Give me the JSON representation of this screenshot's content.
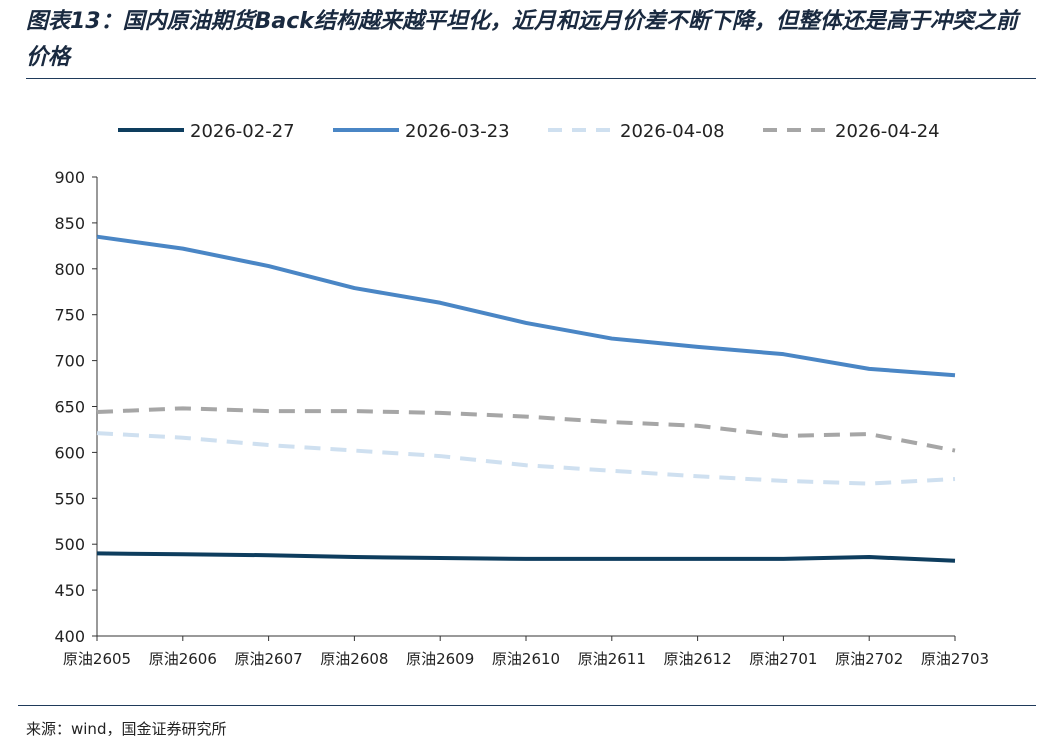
{
  "title": "图表13：国内原油期货Back结构越来越平坦化，近月和远月价差不断下降，但整体还是高于冲突之前价格",
  "source": "来源：wind，国金证券研究所",
  "chart_data": {
    "type": "line",
    "title": "图表13：国内原油期货Back结构越来越平坦化，近月和远月价差不断下降，但整体还是高于冲突之前价格",
    "xlabel": "",
    "ylabel": "",
    "ylim": [
      400,
      900
    ],
    "yticks": [
      400,
      450,
      500,
      550,
      600,
      650,
      700,
      750,
      800,
      850,
      900
    ],
    "grid": false,
    "legend_position": "top",
    "categories": [
      "原油2605",
      "原油2606",
      "原油2607",
      "原油2608",
      "原油2609",
      "原油2610",
      "原油2611",
      "原油2612",
      "原油2701",
      "原油2702",
      "原油2703"
    ],
    "series": [
      {
        "name": "2026-02-27",
        "color": "#0e3d5e",
        "style": "solid",
        "values": [
          490,
          489,
          488,
          486,
          485,
          484,
          484,
          484,
          484,
          486,
          482
        ]
      },
      {
        "name": "2026-03-23",
        "color": "#4a86c5",
        "style": "solid",
        "values": [
          835,
          822,
          803,
          779,
          763,
          741,
          724,
          715,
          707,
          691,
          684
        ]
      },
      {
        "name": "2026-04-08",
        "color": "#cfe0f0",
        "style": "dashed",
        "values": [
          621,
          616,
          608,
          602,
          596,
          586,
          580,
          574,
          569,
          566,
          571
        ]
      },
      {
        "name": "2026-04-24",
        "color": "#a6a6a6",
        "style": "dashed",
        "values": [
          644,
          648,
          645,
          645,
          643,
          639,
          633,
          629,
          618,
          620,
          602
        ]
      }
    ]
  }
}
